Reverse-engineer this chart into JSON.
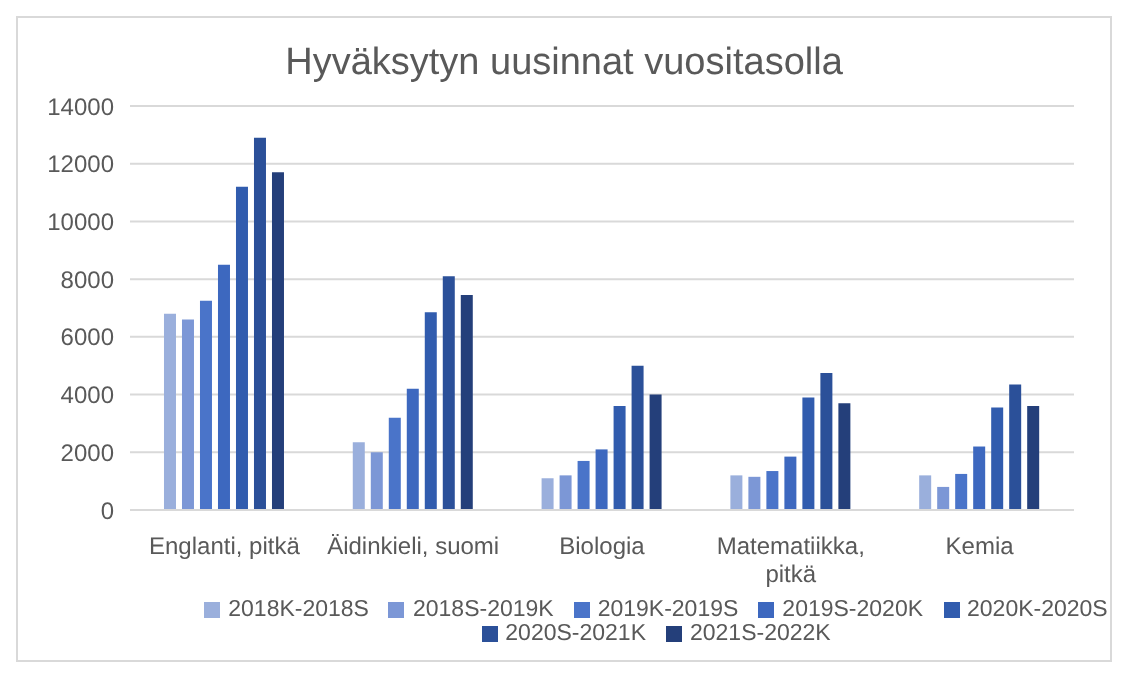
{
  "chart_data": {
    "type": "bar",
    "title": "Hyväksytyn uusinnat vuositasolla",
    "categories": [
      "Englanti, pitkä",
      "Äidinkieli, suomi",
      "Biologia",
      "Matematiikka, pitkä",
      "Kemia"
    ],
    "series": [
      {
        "name": "2018K-2018S",
        "color": "#9aafdc",
        "values": [
          6800,
          2350,
          1100,
          1200,
          1200
        ]
      },
      {
        "name": "2018S-2019K",
        "color": "#7c97d6",
        "values": [
          6600,
          2000,
          1200,
          1150,
          800
        ]
      },
      {
        "name": "2019K-2019S",
        "color": "#4a74c9",
        "values": [
          7250,
          3200,
          1700,
          1350,
          1250
        ]
      },
      {
        "name": "2019S-2020K",
        "color": "#3d68bf",
        "values": [
          8500,
          4200,
          2100,
          1850,
          2200
        ]
      },
      {
        "name": "2020K-2020S",
        "color": "#315cae",
        "values": [
          11200,
          6850,
          3600,
          3900,
          3550
        ]
      },
      {
        "name": "2020S-2021K",
        "color": "#2b5099",
        "values": [
          12900,
          8100,
          5000,
          4750,
          4350
        ]
      },
      {
        "name": "2021S-2022K",
        "color": "#243f7a",
        "values": [
          11700,
          7450,
          4000,
          3700,
          3600
        ]
      }
    ],
    "ylim": [
      0,
      14000
    ],
    "yticks": [
      0,
      2000,
      4000,
      6000,
      8000,
      10000,
      12000,
      14000
    ],
    "grid": "y",
    "legend": "bottom"
  }
}
